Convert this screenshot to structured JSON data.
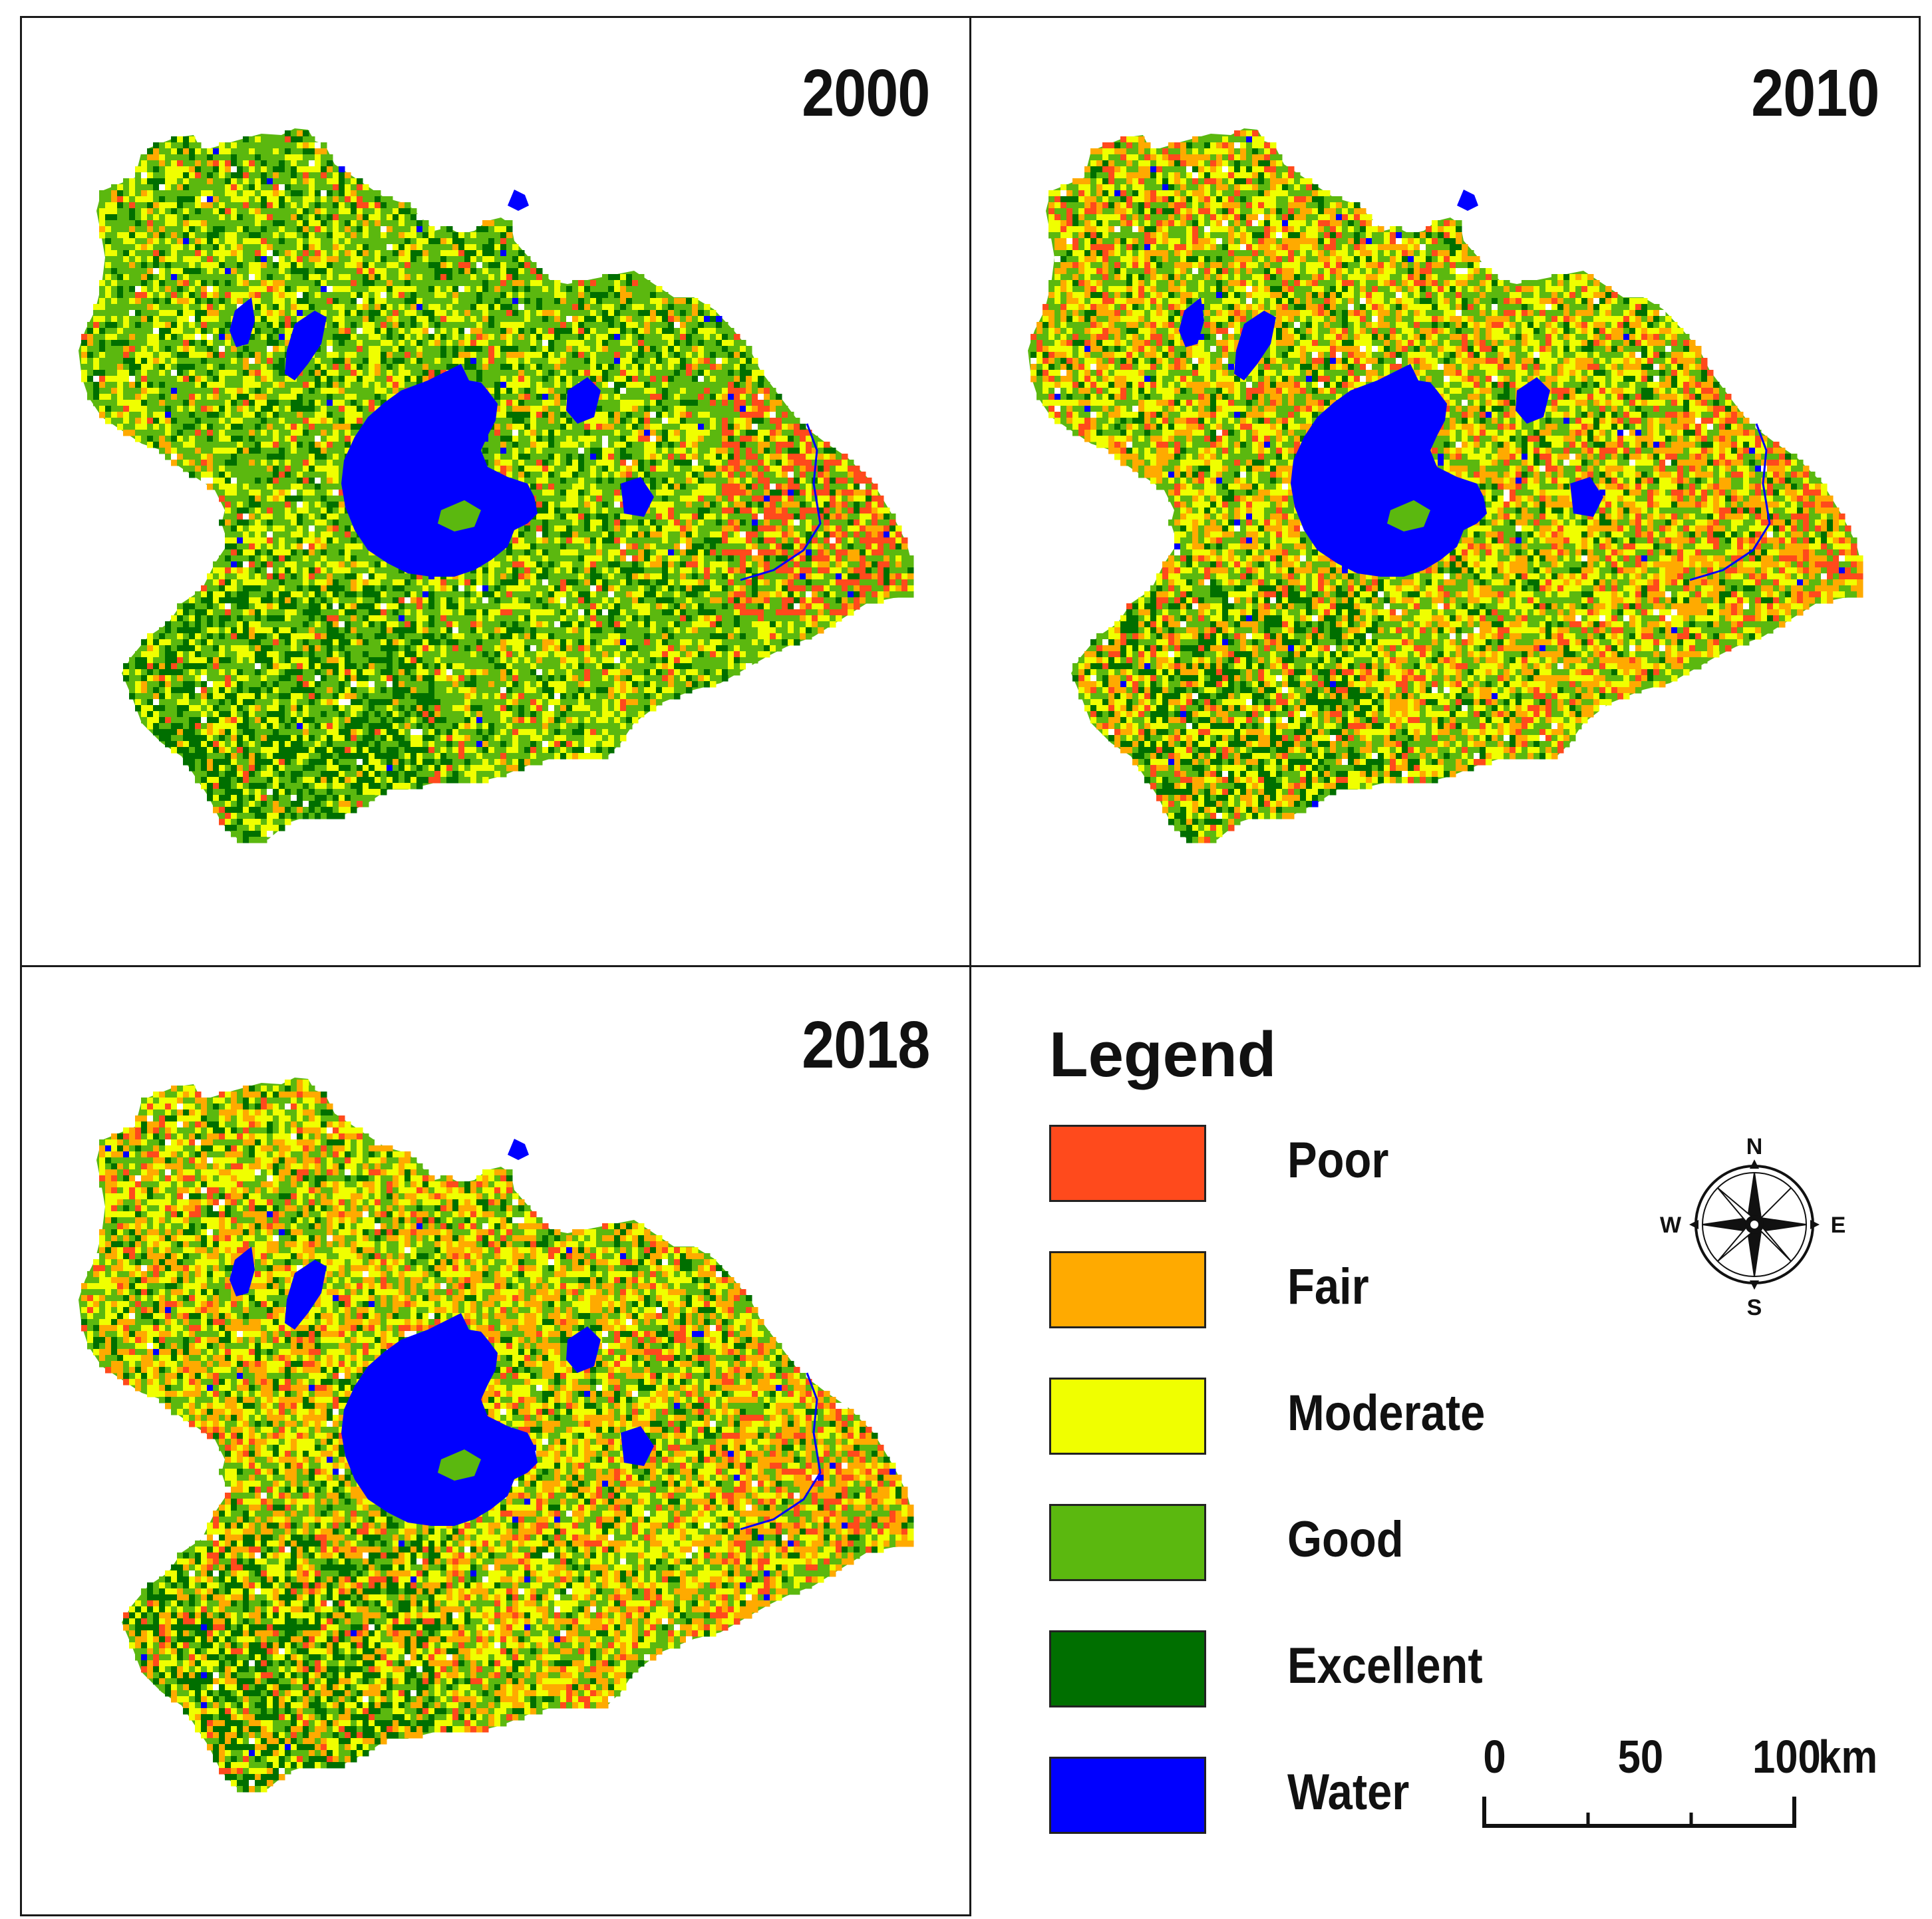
{
  "panels": [
    {
      "id": "p2000",
      "year": "2000"
    },
    {
      "id": "p2010",
      "year": "2010"
    },
    {
      "id": "p2018",
      "year": "2018"
    }
  ],
  "legend": {
    "title": "Legend",
    "items": [
      {
        "label": "Poor",
        "color": "#ff4a1c"
      },
      {
        "label": "Fair",
        "color": "#ffaa00"
      },
      {
        "label": "Moderate",
        "color": "#f0ff00"
      },
      {
        "label": "Good",
        "color": "#5bb80f"
      },
      {
        "label": "Excellent",
        "color": "#006f00"
      },
      {
        "label": "Water",
        "color": "#0000ff"
      }
    ]
  },
  "compass": {
    "n": "N",
    "s": "S",
    "e": "E",
    "w": "W"
  },
  "scale": {
    "ticks": [
      "0",
      "50",
      "100"
    ],
    "unit": "km"
  },
  "maps": {
    "2000": {
      "poor": 0.04,
      "fair": 0.06,
      "moderate": 0.24,
      "good": 0.44,
      "excellent": 0.2,
      "east_hotspot": true
    },
    "2010": {
      "poor": 0.1,
      "fair": 0.22,
      "moderate": 0.26,
      "good": 0.28,
      "excellent": 0.14,
      "east_hotspot": false
    },
    "2018": {
      "poor": 0.08,
      "fair": 0.26,
      "moderate": 0.26,
      "good": 0.26,
      "excellent": 0.14,
      "east_hotspot": false
    }
  }
}
